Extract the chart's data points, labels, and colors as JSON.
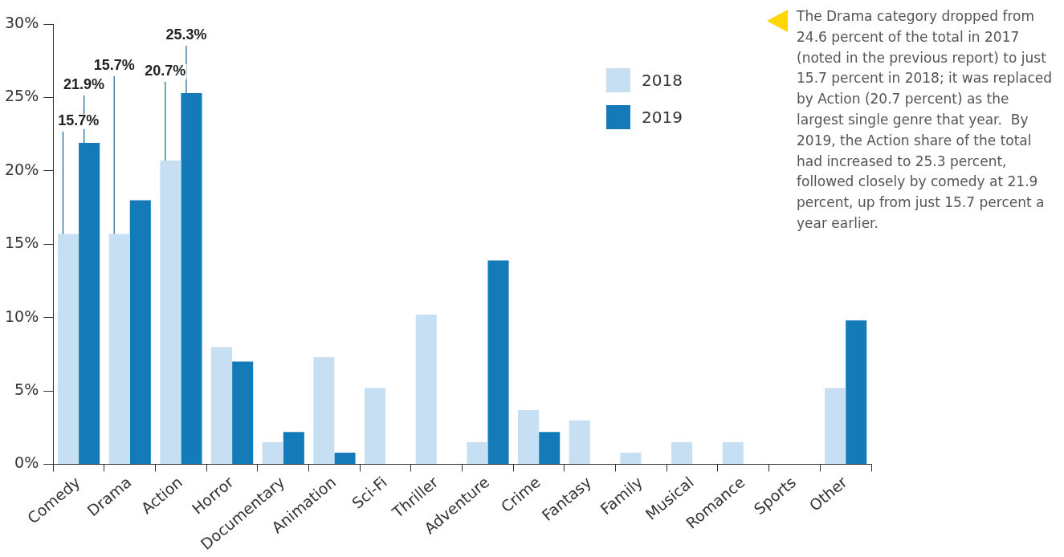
{
  "chart_data": {
    "type": "bar",
    "categories": [
      "Comedy",
      "Drama",
      "Action",
      "Horror",
      "Documentary",
      "Animation",
      "Sci-Fi",
      "Thriller",
      "Adventure",
      "Crime",
      "Fantasy",
      "Family",
      "Musical",
      "Romance",
      "Sports",
      "Other"
    ],
    "series": [
      {
        "name": "2018",
        "color": "#c7dff2",
        "values": [
          15.7,
          15.7,
          20.7,
          8.0,
          1.5,
          7.3,
          5.2,
          10.2,
          1.5,
          3.7,
          3.0,
          0.8,
          1.5,
          1.5,
          null,
          5.2
        ],
        "value_labels": [
          "15.7%",
          "15.7%",
          "20.7%",
          null,
          null,
          null,
          null,
          null,
          null,
          null,
          null,
          null,
          null,
          null,
          null,
          null
        ]
      },
      {
        "name": "2019",
        "color": "#157ab8",
        "values": [
          21.9,
          18.0,
          25.3,
          7.0,
          2.2,
          0.8,
          null,
          null,
          13.9,
          2.2,
          null,
          null,
          null,
          null,
          null,
          9.8
        ],
        "value_labels": [
          "21.9%",
          null,
          "25.3%",
          null,
          null,
          null,
          null,
          null,
          null,
          null,
          null,
          null,
          null,
          null,
          null,
          null
        ]
      }
    ],
    "ylim": [
      0,
      30
    ],
    "yticks": [
      {
        "value": 0,
        "label": "0%"
      },
      {
        "value": 5,
        "label": "5%"
      },
      {
        "value": 10,
        "label": "10%"
      },
      {
        "value": 15,
        "label": "15%"
      },
      {
        "value": 20,
        "label": "20%"
      },
      {
        "value": 25,
        "label": "25%"
      },
      {
        "value": 30,
        "label": "30%"
      }
    ],
    "grid": false,
    "legend": "top right",
    "annotations": [
      "The Drama category dropped from 24.6 percent of the total in 2017 (noted in the previous report) to just 15.7 percent in 2018; it was replaced by Action (20.7 percent) as the largest single genre that year.  By 2019, the Action share of the total had increased to 25.3 percent, followed closely by comedy at 21.9 percent, up from just 15.7 percent a year earlier."
    ]
  }
}
